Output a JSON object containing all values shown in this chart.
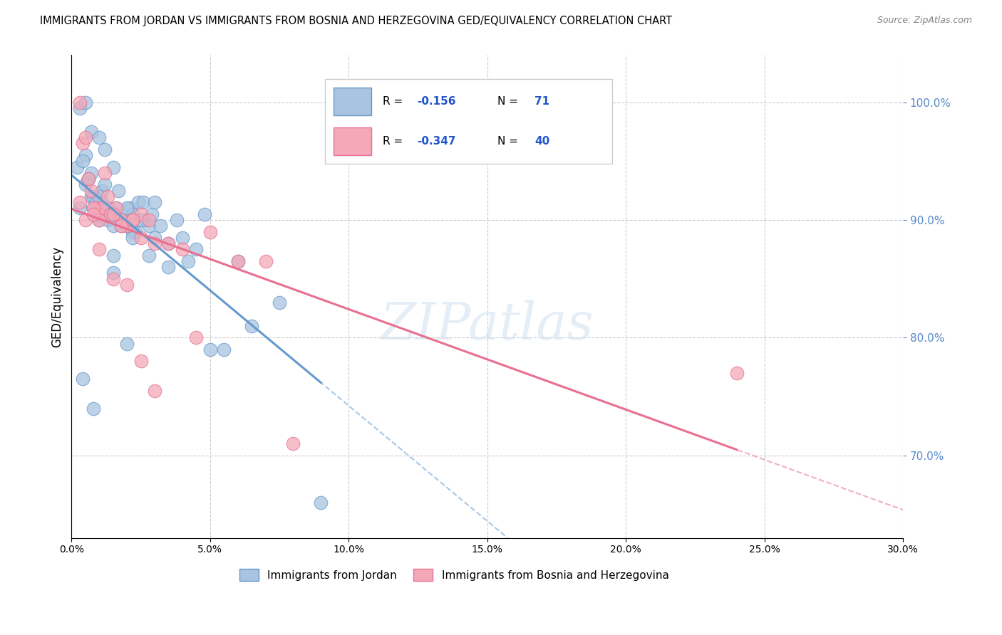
{
  "title": "IMMIGRANTS FROM JORDAN VS IMMIGRANTS FROM BOSNIA AND HERZEGOVINA GED/EQUIVALENCY CORRELATION CHART",
  "source": "Source: ZipAtlas.com",
  "ylabel": "GED/Equivalency",
  "legend_jordan": "Immigrants from Jordan",
  "legend_bosnia": "Immigrants from Bosnia and Herzegovina",
  "R_jordan": -0.156,
  "N_jordan": 71,
  "R_bosnia": -0.347,
  "N_bosnia": 40,
  "color_jordan": "#a8c4e0",
  "color_bosnia": "#f4a8b8",
  "color_jordan_line": "#6699cc",
  "color_bosnia_line": "#e87090",
  "xmin": 0.0,
  "xmax": 30.0,
  "ymin": 63.0,
  "ymax": 104.0,
  "yticks": [
    70.0,
    80.0,
    90.0,
    100.0
  ],
  "jordan_x": [
    0.3,
    0.5,
    0.6,
    0.7,
    0.8,
    0.9,
    1.0,
    1.1,
    1.2,
    1.3,
    1.4,
    1.5,
    1.6,
    1.7,
    1.8,
    1.9,
    2.0,
    2.1,
    2.2,
    2.3,
    2.4,
    2.5,
    2.6,
    2.7,
    2.8,
    2.9,
    3.0,
    3.2,
    3.5,
    3.8,
    4.0,
    4.2,
    4.5,
    4.8,
    5.0,
    5.5,
    6.0,
    0.2,
    0.4,
    0.5,
    0.6,
    0.7,
    0.8,
    0.9,
    1.0,
    1.1,
    1.2,
    1.3,
    1.5,
    1.7,
    2.0,
    2.2,
    2.5,
    3.0,
    0.3,
    0.5,
    0.7,
    1.0,
    1.2,
    1.5,
    2.0,
    1.5,
    2.2,
    2.8,
    3.5,
    7.5,
    9.0,
    0.4,
    0.8,
    1.5,
    6.5
  ],
  "jordan_y": [
    91.0,
    95.5,
    93.5,
    92.0,
    91.0,
    90.5,
    90.0,
    91.5,
    90.5,
    90.0,
    90.5,
    89.5,
    91.0,
    90.0,
    89.5,
    90.0,
    89.5,
    91.0,
    90.5,
    89.0,
    91.5,
    90.0,
    91.5,
    90.0,
    89.5,
    90.5,
    88.5,
    89.5,
    88.0,
    90.0,
    88.5,
    86.5,
    87.5,
    90.5,
    79.0,
    79.0,
    86.5,
    94.5,
    95.0,
    93.0,
    93.5,
    94.0,
    92.0,
    91.5,
    92.0,
    92.5,
    93.0,
    91.0,
    90.5,
    92.5,
    91.0,
    89.0,
    90.0,
    91.5,
    99.5,
    100.0,
    97.5,
    97.0,
    96.0,
    94.5,
    79.5,
    85.5,
    88.5,
    87.0,
    86.0,
    83.0,
    66.0,
    76.5,
    74.0,
    87.0,
    81.0
  ],
  "bosnia_x": [
    0.3,
    0.5,
    0.7,
    0.9,
    1.0,
    1.1,
    1.2,
    1.4,
    1.6,
    1.8,
    2.0,
    2.2,
    2.5,
    2.8,
    3.0,
    3.5,
    4.0,
    5.0,
    6.0,
    7.0,
    0.4,
    0.6,
    0.8,
    1.0,
    1.3,
    1.5,
    1.8,
    2.2,
    2.5,
    0.3,
    0.5,
    0.8,
    1.0,
    1.5,
    2.0,
    2.5,
    3.0,
    4.5,
    8.0,
    24.0
  ],
  "bosnia_y": [
    91.5,
    90.0,
    92.5,
    91.0,
    90.5,
    91.0,
    94.0,
    90.5,
    91.0,
    90.0,
    89.5,
    90.0,
    90.5,
    90.0,
    88.0,
    88.0,
    87.5,
    89.0,
    86.5,
    86.5,
    96.5,
    93.5,
    91.0,
    90.0,
    92.0,
    90.5,
    89.5,
    90.0,
    88.5,
    100.0,
    97.0,
    90.5,
    87.5,
    85.0,
    84.5,
    78.0,
    75.5,
    80.0,
    71.0,
    77.0
  ]
}
